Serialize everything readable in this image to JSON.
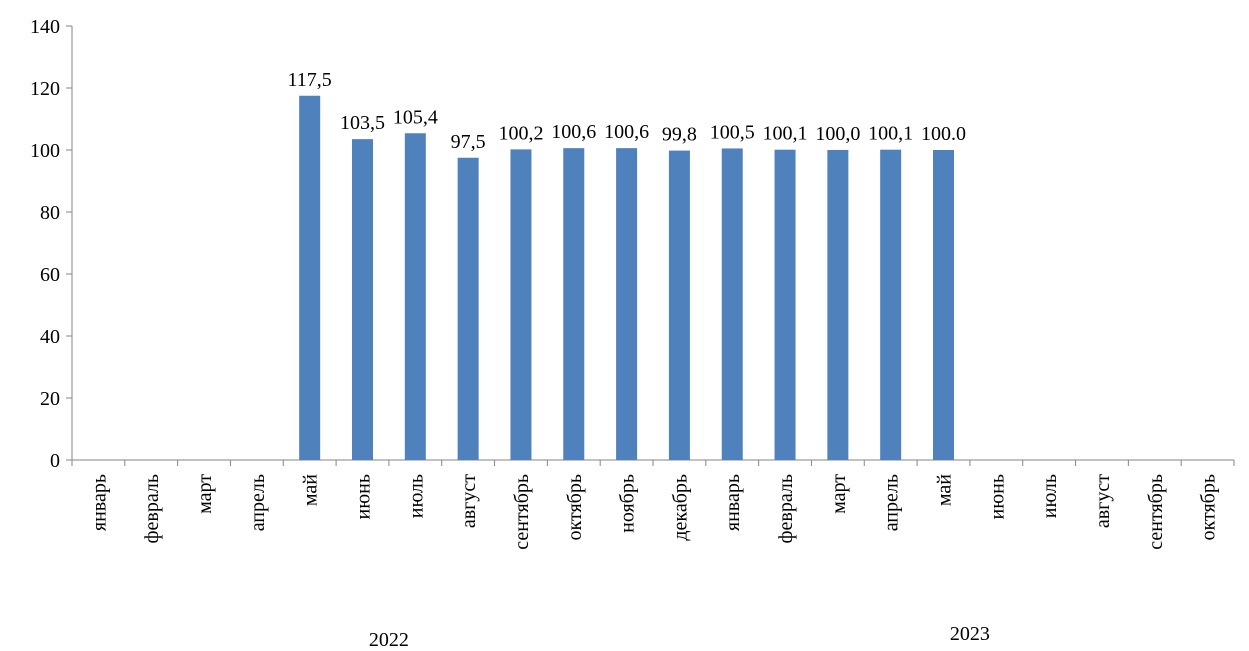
{
  "chart_data": {
    "type": "bar",
    "title": "",
    "xlabel": "",
    "ylabel": "",
    "ylim": [
      0,
      140
    ],
    "yticks": [
      0,
      20,
      40,
      60,
      80,
      100,
      120,
      140
    ],
    "ytick_labels": [
      "0",
      "20",
      "40",
      "60",
      "80",
      "100",
      "120",
      "140"
    ],
    "categories": [
      "январь",
      "февраль",
      "март",
      "апрель",
      "май",
      "июнь",
      "июль",
      "август",
      "сентябрь",
      "октябрь",
      "ноябрь",
      "декабрь",
      "январь",
      "февраль",
      "март",
      "апрель",
      "май",
      "июнь",
      "июль",
      "август",
      "сентябрь",
      "октябрь"
    ],
    "values": [
      null,
      null,
      null,
      null,
      117.5,
      103.5,
      105.4,
      97.5,
      100.2,
      100.6,
      100.6,
      99.8,
      100.5,
      100.1,
      100.0,
      100.1,
      100.0,
      null,
      null,
      null,
      null,
      null
    ],
    "data_labels": [
      "",
      "",
      "",
      "",
      "117,5",
      "103,5",
      "105,4",
      "97,5",
      "100,2",
      "100,6",
      "100,6",
      "99,8",
      "100,5",
      "100,1",
      "100,0",
      "100,1",
      "100.0",
      "",
      "",
      "",
      "",
      ""
    ],
    "groups": [
      {
        "label": "2022",
        "start": 0,
        "end": 11
      },
      {
        "label": "2023",
        "start": 12,
        "end": 21
      }
    ],
    "bar_color": "#4f81bd",
    "axis_color": "#868686",
    "grid": false,
    "legend": "none"
  }
}
